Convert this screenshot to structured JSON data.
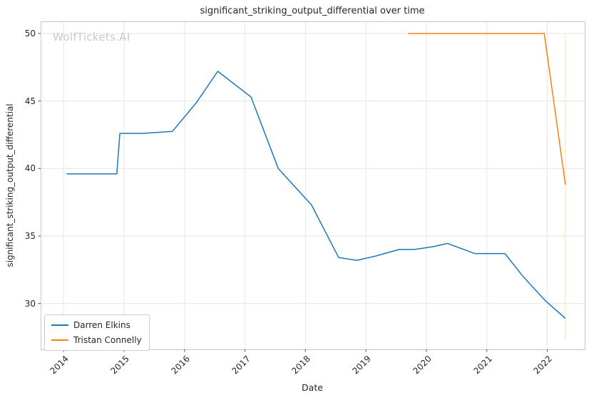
{
  "watermark": "WolfTickets.AI",
  "chart_data": {
    "type": "line",
    "title": "significant_striking_output_differential over time",
    "xlabel": "Date",
    "ylabel": "significant_striking_output_differential",
    "xlim": [
      2013.62,
      2022.62
    ],
    "ylim": [
      26.6,
      50.9
    ],
    "xticks": [
      2014,
      2015,
      2016,
      2017,
      2018,
      2019,
      2020,
      2021,
      2022
    ],
    "yticks": [
      30,
      35,
      40,
      45,
      50
    ],
    "grid": true,
    "grid_color": "#e6e6e6",
    "spine_color": "#c8c8c8",
    "tick_color": "#555555",
    "legend_position": "lower left",
    "series": [
      {
        "name": "Darren Elkins",
        "color": "#1f77b4",
        "x": [
          2014.05,
          2014.88,
          2014.93,
          2015.3,
          2015.8,
          2016.2,
          2016.55,
          2017.1,
          2017.55,
          2018.1,
          2018.55,
          2018.85,
          2019.15,
          2019.55,
          2019.8,
          2020.1,
          2020.35,
          2020.8,
          2021.3,
          2021.6,
          2021.97,
          2022.3
        ],
        "y": [
          39.6,
          39.6,
          42.6,
          42.6,
          42.75,
          44.9,
          47.2,
          45.3,
          40.0,
          37.3,
          33.4,
          33.2,
          33.5,
          34.0,
          34.0,
          34.2,
          34.45,
          33.7,
          33.7,
          32.0,
          30.2,
          28.9
        ]
      },
      {
        "name": "Tristan Connelly",
        "color": "#ff7f0e",
        "x": [
          2019.7,
          2021.95,
          2022.3
        ],
        "y": [
          50.0,
          50.0,
          38.8
        ]
      }
    ],
    "annotations": [
      {
        "type": "vline",
        "x": 2022.3,
        "y0": 27.4,
        "y1": 50.0,
        "color": "#ffb97a",
        "opacity": 0.5
      }
    ]
  }
}
